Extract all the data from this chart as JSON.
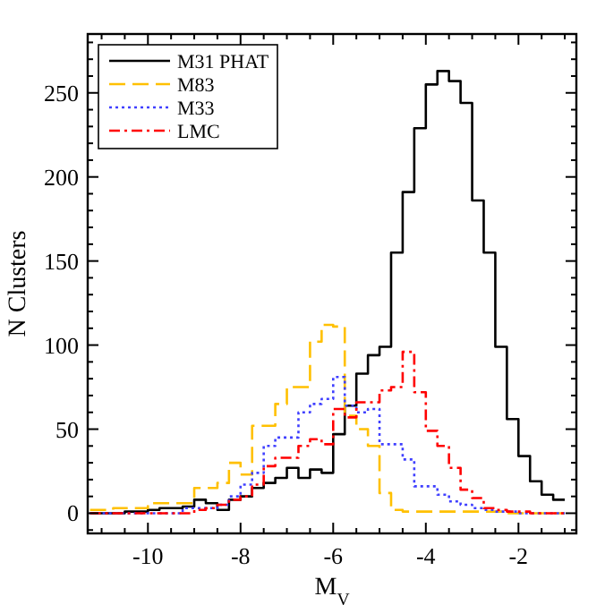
{
  "chart_data": {
    "type": "histogram",
    "xlabel": "M$_{V}$",
    "ylabel": "N Clusters",
    "xlim": [
      -11.3,
      -0.75
    ],
    "ylim": [
      -12,
      285
    ],
    "xticks": [
      -10,
      -8,
      -6,
      -4,
      -2,
      {
        "value": -11,
        "label": null
      },
      {
        "value": -10.5,
        "label": null
      },
      {
        "value": -9.5,
        "label": null
      },
      {
        "value": -9,
        "label": null
      },
      {
        "value": -8.5,
        "label": null
      },
      {
        "value": -7.5,
        "label": null
      },
      {
        "value": -7,
        "label": null
      },
      {
        "value": -6.5,
        "label": null
      },
      {
        "value": -5.5,
        "label": null
      },
      {
        "value": -5,
        "label": null
      },
      {
        "value": -4.5,
        "label": null
      },
      {
        "value": -3.5,
        "label": null
      },
      {
        "value": -3,
        "label": null
      },
      {
        "value": -2.5,
        "label": null
      },
      {
        "value": -1.5,
        "label": null
      },
      {
        "value": -1,
        "label": null
      }
    ],
    "yticks": [
      0,
      50,
      100,
      150,
      200,
      250,
      {
        "value": -10,
        "label": null
      },
      {
        "value": 10,
        "label": null
      },
      {
        "value": 20,
        "label": null
      },
      {
        "value": 30,
        "label": null
      },
      {
        "value": 40,
        "label": null
      },
      {
        "value": 60,
        "label": null
      },
      {
        "value": 70,
        "label": null
      },
      {
        "value": 80,
        "label": null
      },
      {
        "value": 90,
        "label": null
      },
      {
        "value": 110,
        "label": null
      },
      {
        "value": 120,
        "label": null
      },
      {
        "value": 130,
        "label": null
      },
      {
        "value": 140,
        "label": null
      },
      {
        "value": 160,
        "label": null
      },
      {
        "value": 170,
        "label": null
      },
      {
        "value": 180,
        "label": null
      },
      {
        "value": 190,
        "label": null
      },
      {
        "value": 210,
        "label": null
      },
      {
        "value": 220,
        "label": null
      },
      {
        "value": 230,
        "label": null
      },
      {
        "value": 240,
        "label": null
      },
      {
        "value": 260,
        "label": null
      },
      {
        "value": 270,
        "label": null
      },
      {
        "value": 280,
        "label": null
      }
    ],
    "bins": [
      -11.25,
      -11,
      -10.75,
      -10.5,
      -10.25,
      -10,
      -9.75,
      -9.5,
      -9.25,
      -9,
      -8.75,
      -8.5,
      -8.25,
      -8,
      -7.75,
      -7.5,
      -7.25,
      -7,
      -6.75,
      -6.5,
      -6.25,
      -6,
      -5.75,
      -5.5,
      -5.25,
      -5,
      -4.75,
      -4.5,
      -4.25,
      -4,
      -3.75,
      -3.5,
      -3.25,
      -3,
      -2.75,
      -2.5,
      -2.25,
      -2,
      -1.75,
      -1.5,
      -1.25,
      -1
    ],
    "legend": "top left",
    "grid": false,
    "series": [
      {
        "name": "M31 PHAT",
        "color": "#000000",
        "line_style": "solid",
        "values": [
          0,
          0,
          0,
          1,
          1,
          2,
          3,
          3,
          4,
          8,
          6,
          2,
          8,
          10,
          15,
          18,
          21,
          27,
          21,
          26,
          24,
          47,
          64,
          83,
          94,
          99,
          155,
          191,
          229,
          255,
          263,
          257,
          244,
          186,
          155,
          99,
          56,
          34,
          19,
          11,
          8
        ]
      },
      {
        "name": "M83",
        "color": "#ffc000",
        "line_style": "dashed",
        "values": [
          2,
          2,
          3,
          3,
          3,
          6,
          6,
          6,
          6,
          15,
          15,
          18,
          30,
          23,
          52,
          52,
          65,
          75,
          75,
          102,
          112,
          111,
          58,
          50,
          40,
          12,
          2,
          1,
          1,
          1,
          1,
          1,
          1,
          1,
          1,
          1,
          0,
          0,
          0,
          0,
          0
        ]
      },
      {
        "name": "M33",
        "color": "#4040ff",
        "line_style": "dotted",
        "values": [
          0,
          0,
          0,
          0,
          0,
          0,
          0,
          0,
          3,
          3,
          3,
          5,
          10,
          17,
          24,
          40,
          45,
          45,
          60,
          65,
          68,
          81,
          64,
          60,
          62,
          41,
          41,
          32,
          16,
          16,
          11,
          7,
          5,
          3,
          2,
          1,
          1,
          0,
          0,
          0,
          0
        ]
      },
      {
        "name": "LMC",
        "color": "#ff0000",
        "line_style": "dashdot",
        "values": [
          0,
          0,
          0,
          0,
          0,
          0,
          0,
          0,
          0,
          2,
          3,
          5,
          8,
          10,
          17,
          28,
          33,
          33,
          40,
          44,
          41,
          62,
          57,
          66,
          66,
          73,
          75,
          96,
          72,
          49,
          40,
          27,
          14,
          9,
          3,
          2,
          1,
          1,
          0,
          0,
          0
        ]
      }
    ]
  }
}
